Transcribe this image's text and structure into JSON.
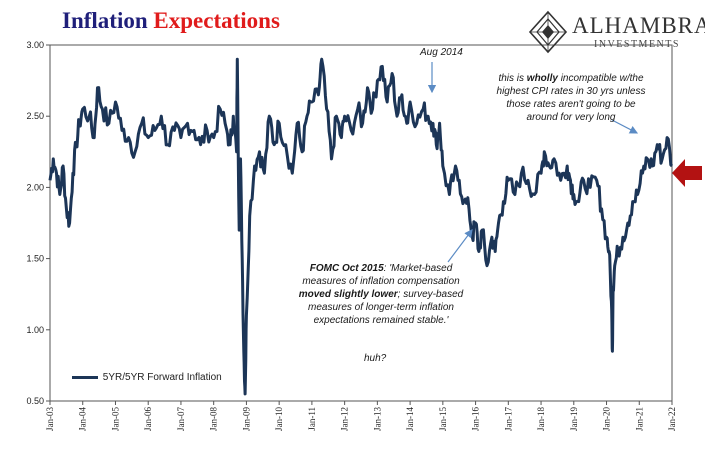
{
  "title": {
    "part1": "Inflation",
    "part2": "Expectations"
  },
  "logo": {
    "name": "ALHAMBRA",
    "sub": "INVESTMENTS"
  },
  "annotations": {
    "aug2014": "Aug 2014",
    "incompatible": [
      "this is |wholly| incompatible w/the",
      "highest CPI rates in 30 yrs unless",
      "those rates aren't going to be",
      "around for very long"
    ],
    "fomc": [
      "|FOMC Oct 2015|: 'Market-based",
      "measures of inflation compensation",
      "|moved slightly lower|; survey-based",
      "measures of longer-term inflation",
      "expectations remained stable.'"
    ],
    "huh": "huh?"
  },
  "colors": {
    "series": "#1c3557",
    "title_blue": "#1f1f7a",
    "title_red": "#e01b1b",
    "arrow": "#b31212",
    "pointer": "#5b8bc4"
  },
  "chart_data": {
    "type": "line",
    "title": "Inflation Expectations",
    "xlabel": "",
    "ylabel": "",
    "ylim": [
      0.5,
      3.0
    ],
    "yticks": [
      "0.50",
      "1.00",
      "1.50",
      "2.00",
      "2.50",
      "3.00"
    ],
    "xticks": [
      "Jan-03",
      "Jan-04",
      "Jan-05",
      "Jan-06",
      "Jan-07",
      "Jan-08",
      "Jan-09",
      "Jan-10",
      "Jan-11",
      "Jan-12",
      "Jan-13",
      "Jan-14",
      "Jan-15",
      "Jan-16",
      "Jan-17",
      "Jan-18",
      "Jan-19",
      "Jan-20",
      "Jan-21",
      "Jan-22"
    ],
    "grid": false,
    "legend": "bottom-left",
    "series": [
      {
        "name": "5YR/5YR Forward Inflation",
        "x": [
          2003.0,
          2003.1,
          2003.2,
          2003.3,
          2003.4,
          2003.5,
          2003.6,
          2003.7,
          2003.8,
          2003.9,
          2004.0,
          2004.2,
          2004.35,
          2004.45,
          2004.6,
          2004.8,
          2005.0,
          2005.2,
          2005.4,
          2005.6,
          2005.8,
          2006.0,
          2006.2,
          2006.4,
          2006.6,
          2006.8,
          2007.0,
          2007.2,
          2007.4,
          2007.6,
          2007.8,
          2008.0,
          2008.2,
          2008.4,
          2008.5,
          2008.6,
          2008.7,
          2008.72,
          2008.78,
          2008.82,
          2008.87,
          2008.92,
          2008.96,
          2009.0,
          2009.1,
          2009.25,
          2009.4,
          2009.55,
          2009.7,
          2009.85,
          2010.0,
          2010.2,
          2010.4,
          2010.55,
          2010.7,
          2010.85,
          2011.0,
          2011.2,
          2011.3,
          2011.45,
          2011.6,
          2011.75,
          2011.9,
          2012.0,
          2012.2,
          2012.4,
          2012.55,
          2012.7,
          2012.85,
          2013.0,
          2013.15,
          2013.3,
          2013.45,
          2013.6,
          2013.75,
          2013.9,
          2014.0,
          2014.2,
          2014.4,
          2014.55,
          2014.7,
          2014.8,
          2014.9,
          2015.0,
          2015.2,
          2015.35,
          2015.5,
          2015.65,
          2015.8,
          2015.9,
          2016.0,
          2016.1,
          2016.2,
          2016.35,
          2016.5,
          2016.6,
          2016.7,
          2016.85,
          2017.0,
          2017.2,
          2017.4,
          2017.6,
          2017.8,
          2018.0,
          2018.1,
          2018.25,
          2018.4,
          2018.6,
          2018.8,
          2018.9,
          2019.0,
          2019.15,
          2019.3,
          2019.5,
          2019.7,
          2019.85,
          2020.0,
          2020.08,
          2020.15,
          2020.18,
          2020.2,
          2020.25,
          2020.35,
          2020.5,
          2020.65,
          2020.8,
          2020.95,
          2021.1,
          2021.25,
          2021.4,
          2021.55,
          2021.7,
          2021.85,
          2022.0
        ],
        "values": [
          2.05,
          2.2,
          2.1,
          1.95,
          2.15,
          1.85,
          1.75,
          2.1,
          2.3,
          2.45,
          2.55,
          2.5,
          2.35,
          2.7,
          2.55,
          2.45,
          2.6,
          2.4,
          2.35,
          2.25,
          2.45,
          2.35,
          2.4,
          2.5,
          2.3,
          2.4,
          2.35,
          2.45,
          2.4,
          2.3,
          2.4,
          2.35,
          2.55,
          2.4,
          2.3,
          2.5,
          2.25,
          2.9,
          1.7,
          2.2,
          1.5,
          0.85,
          0.55,
          1.1,
          1.8,
          2.15,
          2.25,
          2.1,
          2.5,
          2.3,
          2.45,
          2.3,
          2.1,
          2.45,
          2.25,
          2.5,
          2.6,
          2.65,
          2.9,
          2.55,
          2.2,
          2.5,
          2.35,
          2.5,
          2.4,
          2.55,
          2.45,
          2.7,
          2.55,
          2.75,
          2.85,
          2.6,
          2.8,
          2.5,
          2.65,
          2.45,
          2.6,
          2.45,
          2.55,
          2.5,
          2.45,
          2.3,
          2.45,
          2.15,
          1.95,
          2.1,
          2.05,
          1.9,
          1.85,
          1.65,
          1.75,
          1.55,
          1.7,
          1.45,
          1.65,
          1.55,
          1.75,
          1.9,
          2.05,
          1.95,
          2.1,
          2.05,
          1.95,
          2.1,
          2.25,
          2.15,
          2.2,
          2.05,
          2.15,
          2.05,
          1.95,
          1.9,
          2.05,
          2.0,
          2.05,
          1.85,
          1.65,
          1.55,
          1.2,
          0.85,
          1.3,
          1.45,
          1.55,
          1.65,
          1.75,
          1.9,
          1.95,
          2.1,
          2.2,
          2.15,
          2.3,
          2.2,
          2.35,
          2.15
        ]
      }
    ]
  }
}
